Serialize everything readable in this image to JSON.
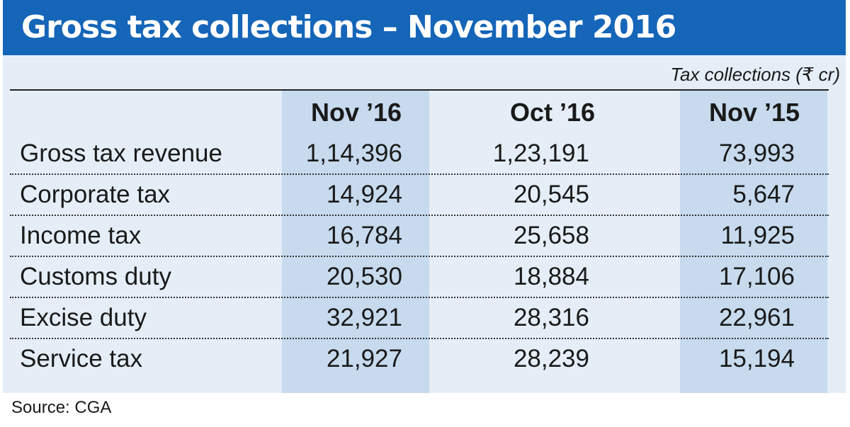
{
  "title": "Gross tax collections – November 2016",
  "unit_note": "Tax collections (₹ cr)",
  "source": "Source: CGA",
  "colors": {
    "banner": "#1565b8",
    "panel": "#e5eef7",
    "highlight_column": "#c7daee",
    "title_text": "#ffffff"
  },
  "chart_data": {
    "type": "table",
    "title": "Gross tax collections – November 2016",
    "unit": "Tax collections (₹ cr)",
    "columns": [
      "Nov ’16",
      "Oct ’16",
      "Nov ’15"
    ],
    "highlighted_columns": [
      "Nov ’16",
      "Nov ’15"
    ],
    "rows": [
      {
        "label": "Gross tax revenue",
        "values": [
          "1,14,396",
          "1,23,191",
          "73,993"
        ]
      },
      {
        "label": "Corporate tax",
        "values": [
          "14,924",
          "20,545",
          "5,647"
        ]
      },
      {
        "label": "Income tax",
        "values": [
          "16,784",
          "25,658",
          "11,925"
        ]
      },
      {
        "label": "Customs duty",
        "values": [
          "20,530",
          "18,884",
          "17,106"
        ]
      },
      {
        "label": "Excise duty",
        "values": [
          "32,921",
          "28,316",
          "22,961"
        ]
      },
      {
        "label": "Service tax",
        "values": [
          "21,927",
          "28,239",
          "15,194"
        ]
      }
    ]
  }
}
